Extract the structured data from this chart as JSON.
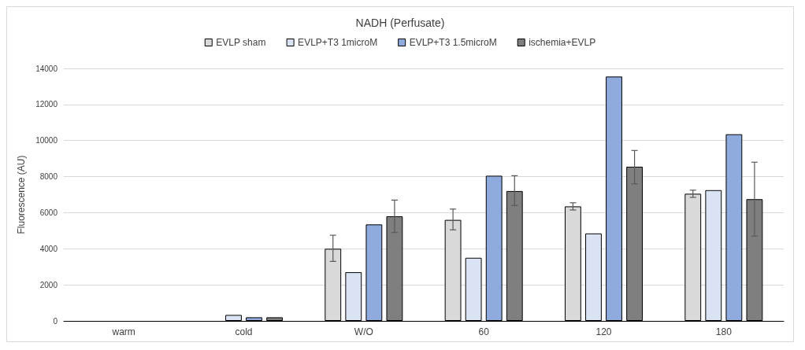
{
  "chart_data": {
    "type": "bar",
    "title": "NADH (Perfusate)",
    "ylabel": "Fluorescence (AU)",
    "categories": [
      "warm",
      "cold",
      "W/O",
      "60",
      "120",
      "180"
    ],
    "series": [
      {
        "name": "EVLP sham",
        "color": "#d9d9d9",
        "values": [
          null,
          null,
          4000,
          5600,
          6350,
          7050
        ],
        "errors": [
          null,
          null,
          [
            3300,
            4750
          ],
          [
            5050,
            6200
          ],
          [
            6150,
            6550
          ],
          [
            6850,
            7250
          ]
        ]
      },
      {
        "name": "EVLP+T3 1microM",
        "color": "#dae3f3",
        "values": [
          null,
          330,
          2700,
          3500,
          4850,
          7250
        ]
      },
      {
        "name": "EVLP+T3 1.5microM",
        "color": "#8faadc",
        "values": [
          null,
          200,
          5350,
          8050,
          13550,
          10350
        ]
      },
      {
        "name": "ischemia+EVLP",
        "color": "#7f7f7f",
        "values": [
          null,
          200,
          5800,
          7200,
          8550,
          6750
        ],
        "errors": [
          null,
          null,
          [
            4900,
            6700
          ],
          [
            6400,
            8050
          ],
          [
            7600,
            9450
          ],
          [
            4700,
            8800
          ]
        ]
      }
    ],
    "ylim": [
      0,
      14000
    ],
    "yticks": [
      0,
      2000,
      4000,
      6000,
      8000,
      10000,
      12000,
      14000
    ],
    "grid": "y",
    "legend": "top"
  }
}
